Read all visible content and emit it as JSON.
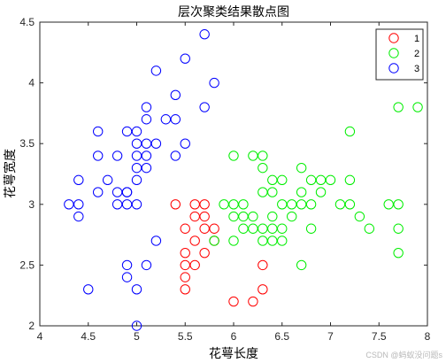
{
  "chart_data": {
    "type": "scatter",
    "title": "层次聚类结果散点图",
    "xlabel": "花萼长度",
    "ylabel": "花萼宽度",
    "xlim": [
      4,
      8
    ],
    "ylim": [
      2,
      4.5
    ],
    "xticks": [
      "4",
      "4.5",
      "5",
      "5.5",
      "6",
      "6.5",
      "7",
      "7.5",
      "8"
    ],
    "yticks": [
      "2",
      "2.5",
      "3",
      "3.5",
      "4",
      "4.5"
    ],
    "grid": false,
    "legend_position": "top-right",
    "marker": "open-circle",
    "series": [
      {
        "name": "1",
        "color": "#ff0000",
        "points": [
          [
            5.4,
            3.0
          ],
          [
            5.6,
            3.0
          ],
          [
            5.7,
            3.0
          ],
          [
            5.6,
            2.9
          ],
          [
            5.7,
            2.9
          ],
          [
            5.5,
            2.8
          ],
          [
            5.7,
            2.8
          ],
          [
            5.8,
            2.8
          ],
          [
            5.6,
            2.7
          ],
          [
            5.8,
            2.7
          ],
          [
            5.5,
            2.6
          ],
          [
            5.7,
            2.6
          ],
          [
            5.5,
            2.5
          ],
          [
            5.6,
            2.5
          ],
          [
            6.3,
            2.5
          ],
          [
            5.5,
            2.4
          ],
          [
            5.5,
            2.3
          ],
          [
            6.3,
            2.3
          ],
          [
            6.0,
            2.2
          ],
          [
            6.2,
            2.2
          ]
        ]
      },
      {
        "name": "2",
        "color": "#00ee00",
        "points": [
          [
            7.7,
            3.8
          ],
          [
            7.9,
            3.8
          ],
          [
            7.2,
            3.6
          ],
          [
            6.0,
            3.4
          ],
          [
            6.3,
            3.4
          ],
          [
            6.2,
            3.4
          ],
          [
            6.3,
            3.3
          ],
          [
            6.7,
            3.3
          ],
          [
            6.4,
            3.2
          ],
          [
            6.5,
            3.2
          ],
          [
            6.8,
            3.2
          ],
          [
            6.9,
            3.2
          ],
          [
            7.2,
            3.2
          ],
          [
            6.7,
            3.1
          ],
          [
            6.9,
            3.1
          ],
          [
            6.4,
            3.1
          ],
          [
            6.3,
            3.1
          ],
          [
            7.0,
            3.2
          ],
          [
            6.5,
            3.0
          ],
          [
            6.8,
            3.0
          ],
          [
            7.1,
            3.0
          ],
          [
            7.2,
            3.0
          ],
          [
            7.6,
            3.0
          ],
          [
            7.7,
            3.0
          ],
          [
            6.1,
            3.0
          ],
          [
            6.6,
            3.0
          ],
          [
            6.7,
            3.0
          ],
          [
            5.9,
            3.0
          ],
          [
            6.0,
            3.0
          ],
          [
            6.2,
            2.9
          ],
          [
            6.4,
            2.9
          ],
          [
            6.1,
            2.9
          ],
          [
            6.0,
            2.9
          ],
          [
            6.6,
            2.9
          ],
          [
            6.1,
            2.8
          ],
          [
            6.2,
            2.8
          ],
          [
            6.3,
            2.8
          ],
          [
            6.4,
            2.8
          ],
          [
            6.5,
            2.8
          ],
          [
            6.8,
            2.8
          ],
          [
            7.4,
            2.8
          ],
          [
            7.7,
            2.8
          ],
          [
            7.3,
            2.9
          ],
          [
            6.3,
            2.7
          ],
          [
            6.0,
            2.7
          ],
          [
            6.4,
            2.7
          ],
          [
            5.8,
            2.7
          ],
          [
            6.5,
            2.7
          ],
          [
            6.7,
            2.5
          ],
          [
            7.7,
            2.6
          ]
        ]
      },
      {
        "name": "3",
        "color": "#0000ff",
        "points": [
          [
            5.7,
            4.4
          ],
          [
            5.2,
            4.1
          ],
          [
            5.5,
            4.2
          ],
          [
            5.4,
            3.9
          ],
          [
            5.8,
            4.0
          ],
          [
            5.7,
            3.8
          ],
          [
            5.1,
            3.8
          ],
          [
            5.1,
            3.7
          ],
          [
            5.3,
            3.7
          ],
          [
            5.4,
            3.7
          ],
          [
            5.5,
            3.5
          ],
          [
            5.0,
            3.6
          ],
          [
            4.6,
            3.6
          ],
          [
            4.9,
            3.6
          ],
          [
            5.0,
            3.5
          ],
          [
            5.1,
            3.5
          ],
          [
            5.2,
            3.5
          ],
          [
            5.4,
            3.4
          ],
          [
            4.8,
            3.4
          ],
          [
            5.0,
            3.4
          ],
          [
            4.6,
            3.4
          ],
          [
            5.1,
            3.4
          ],
          [
            5.0,
            3.3
          ],
          [
            5.1,
            3.3
          ],
          [
            4.7,
            3.2
          ],
          [
            4.6,
            3.1
          ],
          [
            4.9,
            3.1
          ],
          [
            5.0,
            3.2
          ],
          [
            4.4,
            3.2
          ],
          [
            4.8,
            3.1
          ],
          [
            4.9,
            3.0
          ],
          [
            4.3,
            3.0
          ],
          [
            4.4,
            3.0
          ],
          [
            4.4,
            2.9
          ],
          [
            4.8,
            3.0
          ],
          [
            5.0,
            3.0
          ],
          [
            4.9,
            3.1
          ],
          [
            5.2,
            2.7
          ],
          [
            4.9,
            2.5
          ],
          [
            5.1,
            2.5
          ],
          [
            5.0,
            2.3
          ],
          [
            4.5,
            2.3
          ],
          [
            4.9,
            2.4
          ],
          [
            5.0,
            2.0
          ]
        ]
      }
    ]
  },
  "watermark": "CSDN @蚂蚁没问题s"
}
